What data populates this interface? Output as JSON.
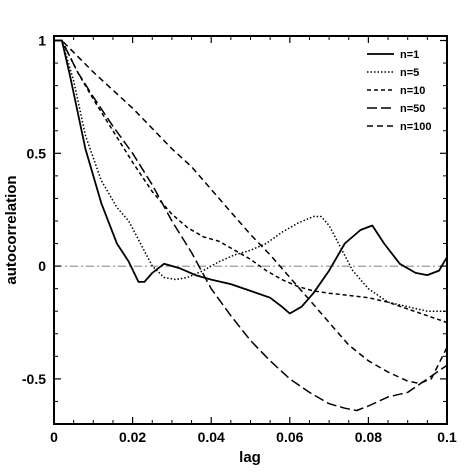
{
  "chart_data": {
    "type": "line",
    "xlabel": "lag",
    "ylabel": "autocorrelation",
    "xlim": [
      0,
      0.1
    ],
    "ylim": [
      -0.7,
      1.02
    ],
    "grid": false,
    "legend_position": "top-right",
    "x_ticks": [
      0,
      0.02,
      0.04,
      0.06,
      0.08,
      0.1
    ],
    "x_tick_labels": [
      "0",
      "0.02",
      "0.04",
      "0.06",
      "0.08",
      "0.1"
    ],
    "y_ticks": [
      -0.5,
      0,
      0.5,
      1
    ],
    "y_tick_labels": [
      "-0.5",
      "0",
      "0.5",
      "1"
    ],
    "reference_line": {
      "y": 0,
      "style": "dashdot"
    },
    "series": [
      {
        "name": "n=1",
        "dash": "solid",
        "x": [
          0,
          0.002,
          0.004,
          0.008,
          0.012,
          0.016,
          0.019,
          0.0215,
          0.023,
          0.025,
          0.028,
          0.032,
          0.036,
          0.04,
          0.045,
          0.05,
          0.055,
          0.058,
          0.06,
          0.063,
          0.066,
          0.07,
          0.074,
          0.078,
          0.081,
          0.084,
          0.088,
          0.092,
          0.095,
          0.098,
          0.1
        ],
        "y": [
          1,
          1,
          0.85,
          0.52,
          0.28,
          0.1,
          0.02,
          -0.07,
          -0.07,
          -0.03,
          0.01,
          -0.01,
          -0.04,
          -0.06,
          -0.08,
          -0.11,
          -0.14,
          -0.18,
          -0.21,
          -0.18,
          -0.12,
          -0.02,
          0.1,
          0.16,
          0.18,
          0.1,
          0.01,
          -0.03,
          -0.04,
          -0.02,
          0.04
        ]
      },
      {
        "name": "n=5",
        "dash": "dotted",
        "x": [
          0,
          0.002,
          0.005,
          0.008,
          0.012,
          0.016,
          0.019,
          0.022,
          0.025,
          0.028,
          0.031,
          0.034,
          0.038,
          0.042,
          0.046,
          0.05,
          0.054,
          0.058,
          0.062,
          0.066,
          0.068,
          0.07,
          0.073,
          0.076,
          0.08,
          0.085,
          0.09,
          0.095,
          0.1
        ],
        "y": [
          1,
          1,
          0.82,
          0.58,
          0.38,
          0.26,
          0.2,
          0.1,
          0.0,
          -0.05,
          -0.06,
          -0.05,
          -0.02,
          0.02,
          0.05,
          0.07,
          0.1,
          0.15,
          0.19,
          0.22,
          0.22,
          0.18,
          0.08,
          -0.02,
          -0.1,
          -0.16,
          -0.18,
          -0.2,
          -0.2
        ]
      },
      {
        "name": "n=10",
        "dash": "short-dash",
        "x": [
          0,
          0.002,
          0.006,
          0.01,
          0.015,
          0.02,
          0.025,
          0.03,
          0.034,
          0.038,
          0.042,
          0.046,
          0.05,
          0.054,
          0.058,
          0.062,
          0.066,
          0.07,
          0.075,
          0.08,
          0.085,
          0.09,
          0.095,
          0.1
        ],
        "y": [
          1,
          1,
          0.86,
          0.74,
          0.6,
          0.46,
          0.33,
          0.23,
          0.17,
          0.13,
          0.11,
          0.07,
          0.03,
          -0.02,
          -0.06,
          -0.09,
          -0.11,
          -0.12,
          -0.13,
          -0.14,
          -0.16,
          -0.19,
          -0.22,
          -0.25
        ]
      },
      {
        "name": "n=50",
        "dash": "long-dash",
        "x": [
          0,
          0.002,
          0.006,
          0.01,
          0.015,
          0.02,
          0.025,
          0.03,
          0.035,
          0.04,
          0.045,
          0.05,
          0.055,
          0.06,
          0.065,
          0.07,
          0.074,
          0.077,
          0.08,
          0.085,
          0.09,
          0.095,
          0.1
        ],
        "y": [
          1,
          1,
          0.86,
          0.75,
          0.62,
          0.5,
          0.36,
          0.2,
          0.06,
          -0.1,
          -0.22,
          -0.33,
          -0.42,
          -0.5,
          -0.56,
          -0.61,
          -0.63,
          -0.64,
          -0.62,
          -0.58,
          -0.56,
          -0.5,
          -0.44
        ]
      },
      {
        "name": "n=100",
        "dash": "medium-dash",
        "x": [
          0,
          0.002,
          0.006,
          0.01,
          0.015,
          0.02,
          0.025,
          0.03,
          0.035,
          0.04,
          0.045,
          0.05,
          0.055,
          0.06,
          0.065,
          0.07,
          0.075,
          0.08,
          0.085,
          0.09,
          0.093,
          0.096,
          0.1
        ],
        "y": [
          1,
          1,
          0.93,
          0.86,
          0.78,
          0.7,
          0.61,
          0.52,
          0.44,
          0.34,
          0.24,
          0.14,
          0.05,
          -0.05,
          -0.15,
          -0.25,
          -0.35,
          -0.42,
          -0.47,
          -0.51,
          -0.52,
          -0.5,
          -0.36
        ]
      }
    ]
  }
}
